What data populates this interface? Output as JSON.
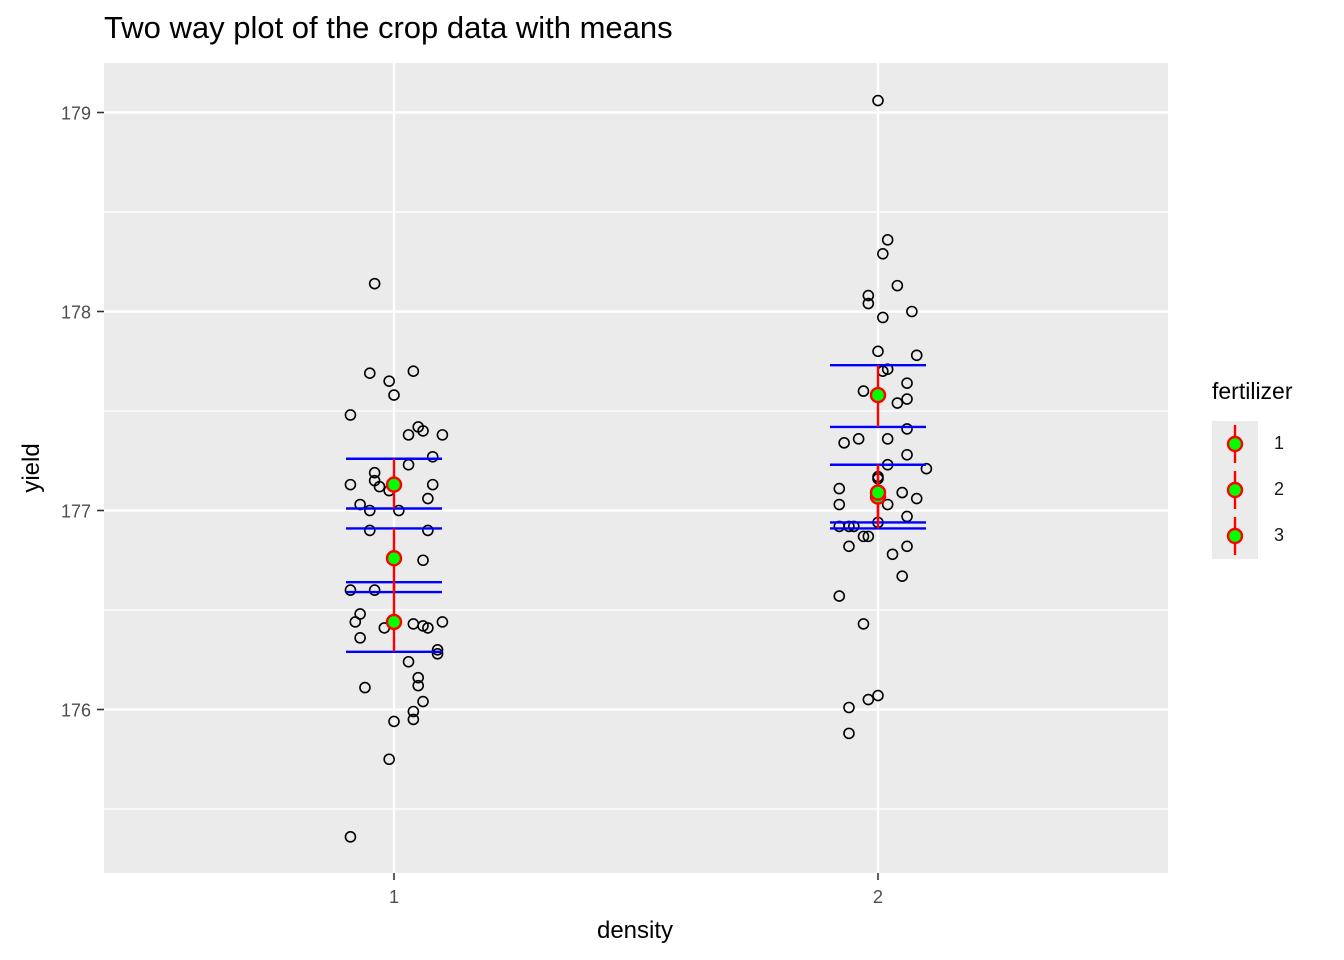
{
  "chart_data": {
    "type": "scatter",
    "title": "Two way plot of the crop data with means",
    "xlabel": "density",
    "ylabel": "yield",
    "x_categories": [
      "1",
      "2"
    ],
    "ylim": [
      175.25,
      179.25
    ],
    "y_ticks": [
      176,
      177,
      178,
      179
    ],
    "grid": true,
    "legend": {
      "title": "fertilizer",
      "placement": "right",
      "entries": [
        "1",
        "2",
        "3"
      ]
    },
    "colors": {
      "panel": "#ebebeb",
      "grid": "#ffffff",
      "mean_point_fill": "#00ff00",
      "mean_point_outline": "#ff0000",
      "errorbar": "#ff0000",
      "ci_lines": "#0000ff",
      "raw_points": "#000000"
    },
    "raw_points": [
      {
        "x": 0.91,
        "y": 175.36
      },
      {
        "x": 0.99,
        "y": 175.75
      },
      {
        "x": 1.0,
        "y": 175.94
      },
      {
        "x": 1.04,
        "y": 175.95
      },
      {
        "x": 1.04,
        "y": 175.99
      },
      {
        "x": 1.06,
        "y": 176.04
      },
      {
        "x": 0.94,
        "y": 176.11
      },
      {
        "x": 1.05,
        "y": 176.12
      },
      {
        "x": 1.05,
        "y": 176.16
      },
      {
        "x": 1.03,
        "y": 176.24
      },
      {
        "x": 1.09,
        "y": 176.28
      },
      {
        "x": 1.09,
        "y": 176.3
      },
      {
        "x": 0.93,
        "y": 176.36
      },
      {
        "x": 0.98,
        "y": 176.41
      },
      {
        "x": 1.07,
        "y": 176.41
      },
      {
        "x": 1.06,
        "y": 176.42
      },
      {
        "x": 1.04,
        "y": 176.43
      },
      {
        "x": 0.92,
        "y": 176.44
      },
      {
        "x": 1.1,
        "y": 176.44
      },
      {
        "x": 0.93,
        "y": 176.48
      },
      {
        "x": 0.91,
        "y": 176.6
      },
      {
        "x": 0.96,
        "y": 176.6
      },
      {
        "x": 1.06,
        "y": 176.75
      },
      {
        "x": 0.95,
        "y": 176.9
      },
      {
        "x": 1.07,
        "y": 176.9
      },
      {
        "x": 0.95,
        "y": 177.0
      },
      {
        "x": 1.01,
        "y": 177.0
      },
      {
        "x": 0.93,
        "y": 177.03
      },
      {
        "x": 1.07,
        "y": 177.06
      },
      {
        "x": 0.99,
        "y": 177.1
      },
      {
        "x": 0.97,
        "y": 177.12
      },
      {
        "x": 0.91,
        "y": 177.13
      },
      {
        "x": 1.08,
        "y": 177.13
      },
      {
        "x": 0.96,
        "y": 177.15
      },
      {
        "x": 0.96,
        "y": 177.19
      },
      {
        "x": 1.03,
        "y": 177.23
      },
      {
        "x": 1.08,
        "y": 177.27
      },
      {
        "x": 1.03,
        "y": 177.38
      },
      {
        "x": 1.1,
        "y": 177.38
      },
      {
        "x": 1.06,
        "y": 177.4
      },
      {
        "x": 1.05,
        "y": 177.42
      },
      {
        "x": 0.91,
        "y": 177.48
      },
      {
        "x": 1.0,
        "y": 177.58
      },
      {
        "x": 0.99,
        "y": 177.65
      },
      {
        "x": 0.95,
        "y": 177.69
      },
      {
        "x": 1.04,
        "y": 177.7
      },
      {
        "x": 0.96,
        "y": 178.14
      },
      {
        "x": 1.94,
        "y": 175.88
      },
      {
        "x": 1.94,
        "y": 176.01
      },
      {
        "x": 1.98,
        "y": 176.05
      },
      {
        "x": 2.0,
        "y": 176.07
      },
      {
        "x": 1.97,
        "y": 176.43
      },
      {
        "x": 1.92,
        "y": 176.57
      },
      {
        "x": 2.05,
        "y": 176.67
      },
      {
        "x": 2.03,
        "y": 176.78
      },
      {
        "x": 1.94,
        "y": 176.82
      },
      {
        "x": 2.06,
        "y": 176.82
      },
      {
        "x": 1.97,
        "y": 176.87
      },
      {
        "x": 1.98,
        "y": 176.87
      },
      {
        "x": 1.92,
        "y": 176.92
      },
      {
        "x": 1.94,
        "y": 176.92
      },
      {
        "x": 1.95,
        "y": 176.92
      },
      {
        "x": 2.0,
        "y": 176.94
      },
      {
        "x": 2.06,
        "y": 176.97
      },
      {
        "x": 1.92,
        "y": 177.03
      },
      {
        "x": 2.02,
        "y": 177.03
      },
      {
        "x": 2.08,
        "y": 177.06
      },
      {
        "x": 2.05,
        "y": 177.09
      },
      {
        "x": 1.92,
        "y": 177.11
      },
      {
        "x": 2.0,
        "y": 177.16
      },
      {
        "x": 2.0,
        "y": 177.17
      },
      {
        "x": 2.1,
        "y": 177.21
      },
      {
        "x": 2.02,
        "y": 177.23
      },
      {
        "x": 2.06,
        "y": 177.28
      },
      {
        "x": 1.93,
        "y": 177.34
      },
      {
        "x": 1.96,
        "y": 177.36
      },
      {
        "x": 2.02,
        "y": 177.36
      },
      {
        "x": 2.06,
        "y": 177.41
      },
      {
        "x": 2.04,
        "y": 177.54
      },
      {
        "x": 2.06,
        "y": 177.56
      },
      {
        "x": 1.97,
        "y": 177.6
      },
      {
        "x": 2.06,
        "y": 177.64
      },
      {
        "x": 2.01,
        "y": 177.7
      },
      {
        "x": 2.02,
        "y": 177.71
      },
      {
        "x": 2.08,
        "y": 177.78
      },
      {
        "x": 2.0,
        "y": 177.8
      },
      {
        "x": 2.07,
        "y": 178.0
      },
      {
        "x": 2.01,
        "y": 177.97
      },
      {
        "x": 1.98,
        "y": 178.04
      },
      {
        "x": 1.98,
        "y": 178.08
      },
      {
        "x": 2.04,
        "y": 178.13
      },
      {
        "x": 2.01,
        "y": 178.29
      },
      {
        "x": 2.02,
        "y": 178.36
      },
      {
        "x": 2.0,
        "y": 179.06
      }
    ],
    "means": [
      {
        "density": "1",
        "fertilizer": "1",
        "mean": 176.76,
        "ci_low": 176.59,
        "ci_high": 176.91
      },
      {
        "density": "1",
        "fertilizer": "2",
        "mean": 176.44,
        "ci_low": 176.29,
        "ci_high": 176.64
      },
      {
        "density": "1",
        "fertilizer": "3",
        "mean": 177.13,
        "ci_low": 177.01,
        "ci_high": 177.26
      },
      {
        "density": "2",
        "fertilizer": "1",
        "mean": 177.58,
        "ci_low": 177.42,
        "ci_high": 177.73
      },
      {
        "density": "2",
        "fertilizer": "2",
        "mean": 177.07,
        "ci_low": 176.91,
        "ci_high": 177.23
      },
      {
        "density": "2",
        "fertilizer": "3",
        "mean": 177.09,
        "ci_low": 176.94,
        "ci_high": 177.23
      }
    ]
  }
}
